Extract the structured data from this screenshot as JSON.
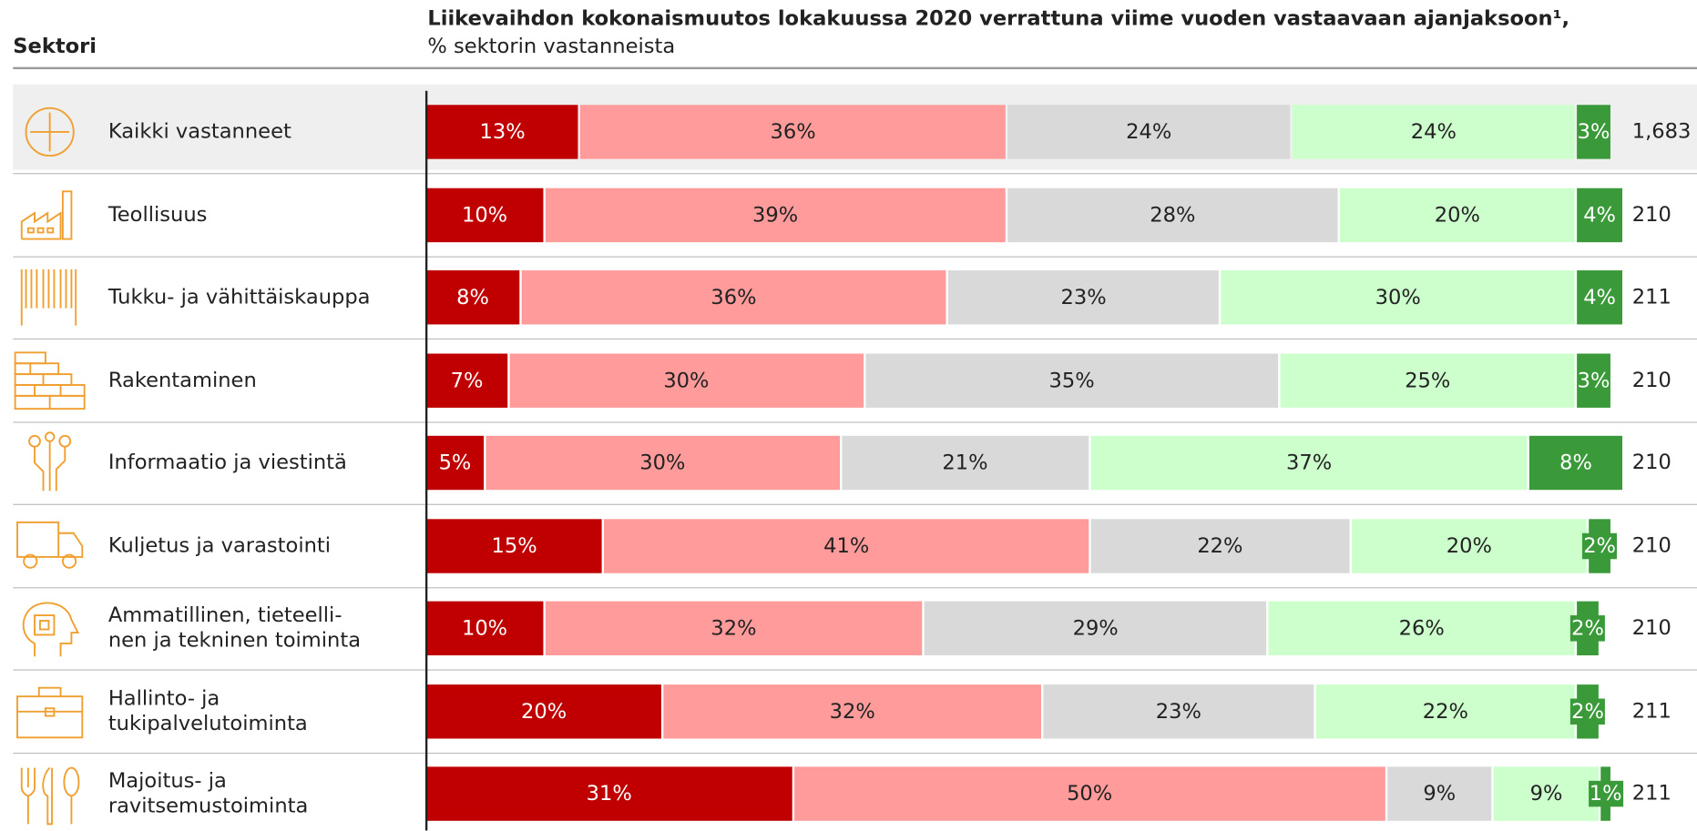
{
  "header": {
    "sector_label": "Sektori"
  },
  "chart_data": {
    "type": "stacked_bar",
    "orientation": "horizontal",
    "title": "Liikevaihdon kokonaismuutos lokakuussa 2020 verrattuna viime vuoden vastaavaan ajanjaksoon¹,",
    "subtitle": "% sektorin vastanneista",
    "categories": [
      "Kaikki vastanneet",
      "Teollisuus",
      "Tukku- ja vähittäiskauppa",
      "Rakentaminen",
      "Informaatio ja viestintä",
      "Kuljetus ja varastointi",
      "Ammatillinen, tieteelli-\nnen ja tekninen toiminta",
      "Hallinto- ja\ntukipalvelutoiminta",
      "Majoitus- ja\nravitsemustoiminta"
    ],
    "series": [
      {
        "color": "#c00000",
        "text_color": "#ffffff",
        "values": [
          13,
          10,
          8,
          7,
          5,
          15,
          10,
          20,
          31
        ],
        "value_labels": [
          "13%",
          "10%",
          "8%",
          "7%",
          "5%",
          "15%",
          "10%",
          "20%",
          "31%"
        ]
      },
      {
        "color": "#ff9b9b",
        "text_color": "#222222",
        "values": [
          36,
          39,
          36,
          30,
          30,
          41,
          32,
          32,
          50
        ],
        "value_labels": [
          "36%",
          "39%",
          "36%",
          "30%",
          "30%",
          "41%",
          "32%",
          "32%",
          "50%"
        ]
      },
      {
        "color": "#d9d9d9",
        "text_color": "#222222",
        "values": [
          24,
          28,
          23,
          35,
          21,
          22,
          29,
          23,
          9
        ],
        "value_labels": [
          "24%",
          "28%",
          "23%",
          "35%",
          "21%",
          "22%",
          "29%",
          "23%",
          "9%"
        ]
      },
      {
        "color": "#ccffcc",
        "text_color": "#222222",
        "values": [
          24,
          20,
          30,
          25,
          37,
          20,
          26,
          22,
          9
        ],
        "value_labels": [
          "24%",
          "20%",
          "30%",
          "25%",
          "37%",
          "20%",
          "26%",
          "22%",
          "9%"
        ]
      },
      {
        "color": "#3a9a3a",
        "text_color": "#ffffff",
        "values": [
          3,
          4,
          4,
          3,
          8,
          2,
          2,
          2,
          1
        ],
        "value_labels": [
          "3%",
          "4%",
          "4%",
          "3%",
          "8%",
          "2%",
          "2%",
          "2%",
          "1%"
        ]
      }
    ],
    "respondents": [
      "1,683",
      "210",
      "211",
      "210",
      "210",
      "210",
      "210",
      "211",
      "211"
    ],
    "xlim": [
      0,
      100
    ],
    "highlight_first_row": true
  }
}
